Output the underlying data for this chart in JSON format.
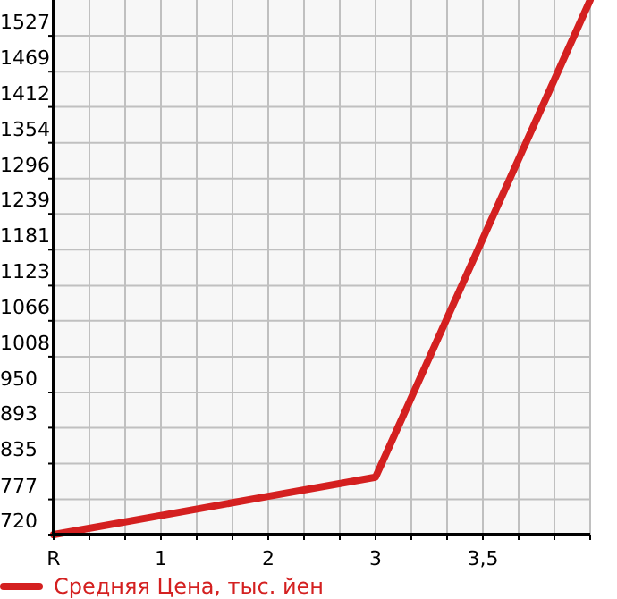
{
  "chart_data": {
    "type": "line",
    "categories": [
      "R",
      "1",
      "2",
      "3",
      "3,5",
      null
    ],
    "series": [
      {
        "name": "Средняя Цена, тыс. йен",
        "color": "#d42020",
        "values": [
          720,
          751,
          782,
          813,
          1199,
          1585
        ]
      }
    ],
    "ylim": [
      720,
      1585
    ],
    "yticks": [
      720,
      777,
      835,
      893,
      950,
      1008,
      1066,
      1123,
      1181,
      1239,
      1296,
      1354,
      1412,
      1469,
      1527
    ],
    "grid": true,
    "legend": "bottom",
    "marker": "none",
    "line_style": "solid"
  }
}
